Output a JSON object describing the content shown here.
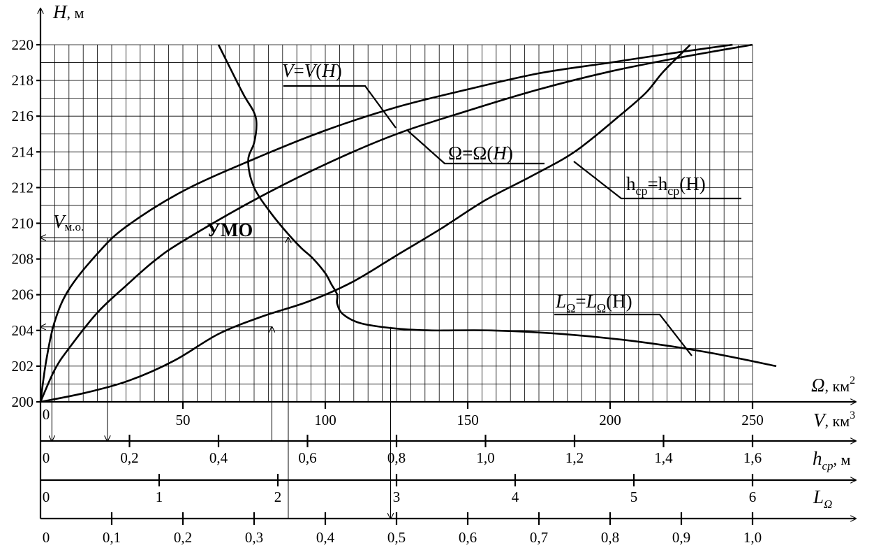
{
  "chart_data": {
    "type": "line",
    "y_axis": {
      "label_main": "H",
      "label_unit": ", м",
      "ticks": [
        "200",
        "202",
        "204",
        "206",
        "208",
        "210",
        "212",
        "214",
        "216",
        "218",
        "220"
      ],
      "range": [
        200,
        220
      ]
    },
    "x_axes": [
      {
        "id": "omega",
        "label_main": "Ω",
        "label_unit": ", км",
        "label_sup": "2",
        "ticks": [
          "0"
        ],
        "range": [
          0,
          250
        ]
      },
      {
        "id": "volume",
        "label_main": "V",
        "label_unit": ", км",
        "label_sup": "3",
        "ticks": [
          "50",
          "100",
          "150",
          "200",
          "250"
        ],
        "range": [
          0,
          250
        ]
      },
      {
        "id": "hcp",
        "label_main": "h",
        "label_sub": "cp",
        "label_unit": ", м",
        "ticks": [
          "0",
          "0,2",
          "0,4",
          "0,6",
          "0,8",
          "1,0",
          "1,2",
          "1,4",
          "1,6"
        ],
        "range": [
          0,
          1.6
        ]
      },
      {
        "id": "lomega",
        "label_main": "L",
        "label_sub": "Ω",
        "ticks": [
          "0",
          "1",
          "2",
          "3",
          "4",
          "5",
          "6"
        ],
        "range": [
          0,
          6
        ]
      },
      {
        "id": "umo_fraction",
        "ticks": [
          "0",
          "0,1",
          "0,2",
          "0,3",
          "0,4",
          "0,5",
          "0,6",
          "0,7",
          "0,8",
          "0,9",
          "1,0"
        ],
        "range": [
          0,
          1.0
        ]
      }
    ],
    "series": [
      {
        "id": "V",
        "label_html": "<tspan font-style='italic'>V</tspan>=<tspan font-style='italic'>V</tspan>(<tspan font-style='italic'>H</tspan>)",
        "x_axis": "volume",
        "x": [
          0,
          2,
          5,
          10,
          20,
          30,
          50,
          75,
          100,
          125,
          150,
          175,
          200,
          225,
          243
        ],
        "y": [
          200,
          202.3,
          204.5,
          206.3,
          208.3,
          209.8,
          211.8,
          213.6,
          215.2,
          216.5,
          217.5,
          218.4,
          219.0,
          219.6,
          220
        ]
      },
      {
        "id": "Omega",
        "label_html": "Ω=Ω(<tspan font-style='italic'>H</tspan>)",
        "x_axis": "omega",
        "x": [
          0,
          5,
          10,
          20,
          30,
          40,
          50,
          75,
          100,
          125,
          150,
          175,
          200,
          225,
          250
        ],
        "y": [
          200,
          201.8,
          203.0,
          205.0,
          206.5,
          207.9,
          209.0,
          211.3,
          213.3,
          215.0,
          216.3,
          217.5,
          218.5,
          219.3,
          220
        ]
      },
      {
        "id": "hcp",
        "label_html": "h<tspan font-size='18' dy='7'>cp</tspan><tspan dy='-7'>=h</tspan><tspan font-size='18' dy='7'>cp</tspan><tspan dy='-7'>(H)</tspan>",
        "x_axis": "hcp",
        "x": [
          0,
          0.1,
          0.2,
          0.3,
          0.4,
          0.5,
          0.6,
          0.7,
          0.8,
          0.9,
          1.0,
          1.1,
          1.2,
          1.3,
          1.36,
          1.4,
          1.46
        ],
        "y": [
          200,
          200.5,
          201.2,
          202.3,
          203.8,
          204.8,
          205.6,
          206.7,
          208.2,
          209.7,
          211.3,
          212.6,
          214.0,
          216.0,
          217.3,
          218.5,
          220
        ]
      },
      {
        "id": "L",
        "label_html": "<tspan font-style='italic'>L</tspan><tspan font-size='18' dy='7'>Ω</tspan><tspan dy='-7'>=</tspan><tspan font-style='italic'>L</tspan><tspan font-size='18' dy='7'>Ω</tspan><tspan dy='-7'>(H)</tspan>",
        "x_axis": "lomega",
        "x": [
          6.2,
          5.6,
          5.0,
          4.4,
          3.8,
          3.3,
          3.0,
          2.7,
          2.55,
          2.5,
          2.5,
          2.45,
          2.4,
          2.3,
          2.2,
          2.1,
          1.95,
          1.8,
          1.75,
          1.8,
          1.82,
          1.8,
          1.72,
          1.65,
          1.5
        ],
        "y": [
          202,
          202.8,
          203.4,
          203.8,
          204.0,
          204.0,
          204.1,
          204.4,
          204.9,
          205.5,
          206.0,
          206.6,
          207.2,
          208.0,
          208.6,
          209.3,
          210.5,
          212.0,
          213.5,
          214.5,
          215.5,
          216.2,
          217.1,
          218.0,
          220
        ]
      }
    ],
    "annotations": [
      {
        "id": "v-mo",
        "text_main": "V",
        "text_sub": "м.о."
      },
      {
        "id": "umo",
        "text": "УМО"
      }
    ]
  }
}
